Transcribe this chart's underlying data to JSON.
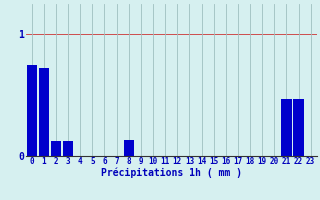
{
  "hours": [
    0,
    1,
    2,
    3,
    4,
    5,
    6,
    7,
    8,
    9,
    10,
    11,
    12,
    13,
    14,
    15,
    16,
    17,
    18,
    19,
    20,
    21,
    22,
    23
  ],
  "values": [
    0.75,
    0.72,
    0.12,
    0.12,
    0,
    0,
    0,
    0,
    0.13,
    0,
    0,
    0,
    0,
    0,
    0,
    0,
    0,
    0,
    0,
    0,
    0,
    0.47,
    0.47,
    0
  ],
  "bar_color": "#0000cc",
  "background_color": "#d6f0f0",
  "grid_color_x": "#9fbfbf",
  "grid_color_y": "#cc3333",
  "xlabel": "Précipitations 1h ( mm )",
  "ylim": [
    0,
    1.25
  ],
  "yticks": [
    0,
    1
  ],
  "xlabel_fontsize": 7,
  "tick_fontsize": 5.5,
  "bar_width": 0.85
}
